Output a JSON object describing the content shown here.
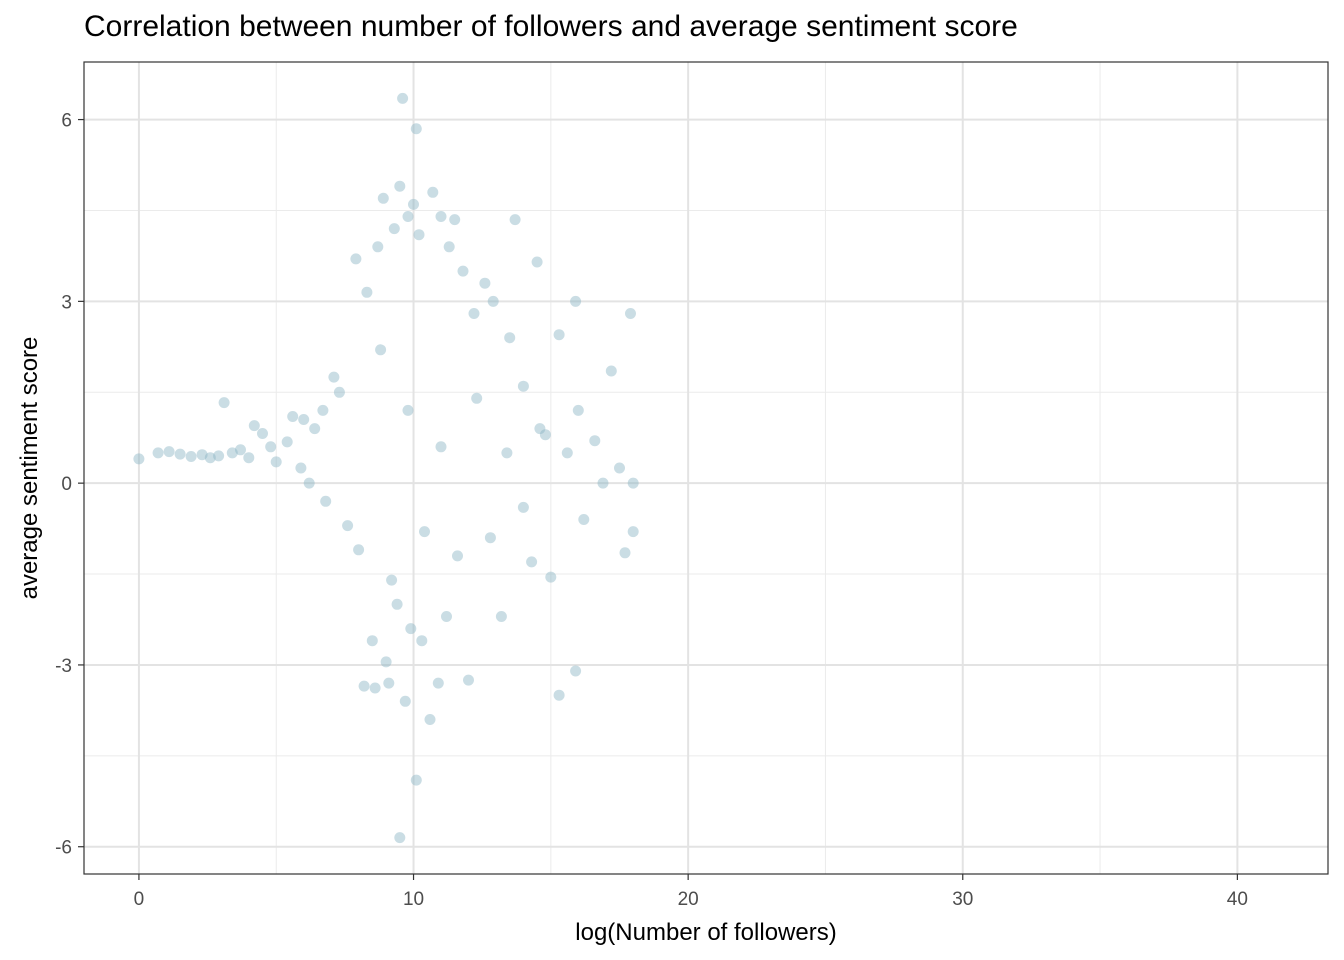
{
  "chart_data": {
    "type": "scatter",
    "title": "Correlation between number of followers and average sentiment score",
    "xlabel": "log(Number of followers)",
    "ylabel": "average sentiment score",
    "xlim": [
      -2.0,
      43.3
    ],
    "ylim": [
      -6.45,
      6.95
    ],
    "x_ticks": [
      0,
      10,
      20,
      30,
      40
    ],
    "y_ticks": [
      -6,
      -3,
      0,
      3,
      6
    ],
    "x_tick_labels": [
      "0",
      "10",
      "20",
      "30",
      "40"
    ],
    "y_tick_labels": [
      "-6",
      "-3",
      "0",
      "3",
      "6"
    ],
    "grid": true,
    "point_color": "#8AB4C3",
    "point_opacity": 0.45,
    "series": [
      {
        "values": [
          [
            0.0,
            0.4
          ],
          [
            0.7,
            0.5
          ],
          [
            1.1,
            0.52
          ],
          [
            1.5,
            0.48
          ],
          [
            1.9,
            0.44
          ],
          [
            2.3,
            0.47
          ],
          [
            2.6,
            0.42
          ],
          [
            2.9,
            0.45
          ],
          [
            3.1,
            1.33
          ],
          [
            3.4,
            0.5
          ],
          [
            3.7,
            0.55
          ],
          [
            4.0,
            0.42
          ],
          [
            4.2,
            0.95
          ],
          [
            4.5,
            0.82
          ],
          [
            4.8,
            0.6
          ],
          [
            5.0,
            0.35
          ],
          [
            5.4,
            0.68
          ],
          [
            5.6,
            1.1
          ],
          [
            5.9,
            0.25
          ],
          [
            6.0,
            1.05
          ],
          [
            6.2,
            0.0
          ],
          [
            6.4,
            0.9
          ],
          [
            6.7,
            1.2
          ],
          [
            6.8,
            -0.3
          ],
          [
            7.1,
            1.75
          ],
          [
            7.3,
            1.5
          ],
          [
            7.6,
            -0.7
          ],
          [
            7.9,
            3.7
          ],
          [
            8.0,
            -1.1
          ],
          [
            8.2,
            -3.35
          ],
          [
            8.3,
            3.15
          ],
          [
            8.5,
            -2.6
          ],
          [
            8.6,
            -3.38
          ],
          [
            8.7,
            3.9
          ],
          [
            8.9,
            4.7
          ],
          [
            9.0,
            -2.95
          ],
          [
            9.1,
            -3.3
          ],
          [
            9.3,
            4.2
          ],
          [
            9.4,
            -2.0
          ],
          [
            9.5,
            4.9
          ],
          [
            9.5,
            -5.85
          ],
          [
            9.6,
            6.35
          ],
          [
            9.7,
            -3.6
          ],
          [
            9.8,
            4.4
          ],
          [
            9.9,
            -2.4
          ],
          [
            10.0,
            4.6
          ],
          [
            10.1,
            5.85
          ],
          [
            10.1,
            -4.9
          ],
          [
            10.2,
            4.1
          ],
          [
            10.3,
            -2.6
          ],
          [
            10.6,
            -3.9
          ],
          [
            10.7,
            4.8
          ],
          [
            10.9,
            -3.3
          ],
          [
            11.0,
            4.4
          ],
          [
            11.2,
            -2.2
          ],
          [
            11.3,
            3.9
          ],
          [
            11.5,
            4.35
          ],
          [
            11.8,
            3.5
          ],
          [
            12.0,
            -3.25
          ],
          [
            12.2,
            2.8
          ],
          [
            12.6,
            3.3
          ],
          [
            12.9,
            3.0
          ],
          [
            13.2,
            -2.2
          ],
          [
            13.5,
            2.4
          ],
          [
            13.7,
            4.35
          ],
          [
            14.0,
            1.6
          ],
          [
            14.3,
            -1.3
          ],
          [
            14.5,
            3.65
          ],
          [
            14.8,
            0.8
          ],
          [
            15.0,
            -1.55
          ],
          [
            15.3,
            2.45
          ],
          [
            15.3,
            -3.5
          ],
          [
            15.6,
            0.5
          ],
          [
            15.9,
            3.0
          ],
          [
            15.9,
            -3.1
          ],
          [
            16.2,
            -0.6
          ],
          [
            16.6,
            0.7
          ],
          [
            16.9,
            0.0
          ],
          [
            17.2,
            1.85
          ],
          [
            17.5,
            0.25
          ],
          [
            17.7,
            -1.15
          ],
          [
            17.9,
            2.8
          ],
          [
            18.0,
            0.0
          ],
          [
            18.0,
            -0.8
          ],
          [
            8.8,
            2.2
          ],
          [
            9.2,
            -1.6
          ],
          [
            9.8,
            1.2
          ],
          [
            10.4,
            -0.8
          ],
          [
            11.0,
            0.6
          ],
          [
            11.6,
            -1.2
          ],
          [
            12.3,
            1.4
          ],
          [
            12.8,
            -0.9
          ],
          [
            13.4,
            0.5
          ],
          [
            14.0,
            -0.4
          ],
          [
            14.6,
            0.9
          ],
          [
            16.0,
            1.2
          ]
        ]
      }
    ]
  }
}
